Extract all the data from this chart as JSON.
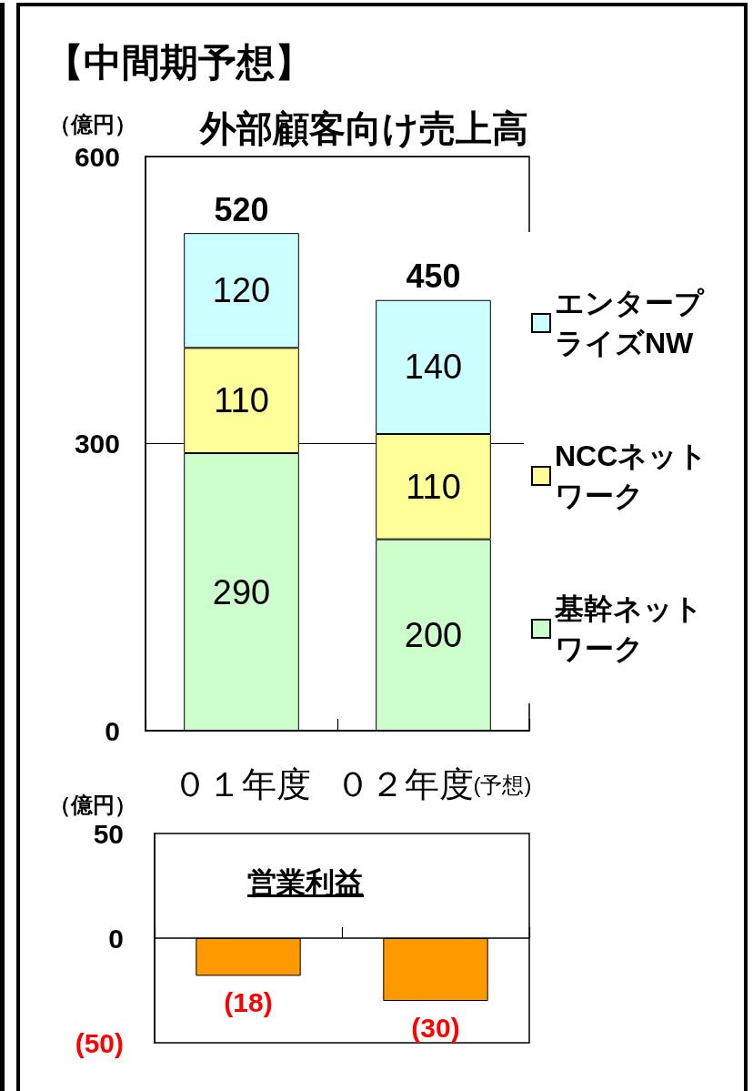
{
  "chart_data": [
    {
      "type": "bar",
      "title": "【中間期予想】",
      "subtitle": "外部顧客向け売上高",
      "ylabel": "（億円）",
      "categories": [
        "０１年度",
        "０２年度(予想)"
      ],
      "series": [
        {
          "name": "基幹ネットワーク",
          "color": "#ccffcc",
          "values": [
            290,
            200
          ]
        },
        {
          "name": "NCCネットワーク",
          "color": "#ffff99",
          "values": [
            110,
            110
          ]
        },
        {
          "name": "エンタープライズNW",
          "color": "#ccffff",
          "values": [
            120,
            140
          ]
        }
      ],
      "stacked": true,
      "ylim": [
        0,
        600
      ],
      "yticks": [
        0,
        300,
        600
      ],
      "grid": "y",
      "legend": "right",
      "data_labels": true,
      "totals": [
        "520",
        "450"
      ]
    },
    {
      "type": "bar",
      "title": "営業利益",
      "ylabel": "（億円）",
      "categories": [
        "０１年度",
        "０２年度(予想)"
      ],
      "values": [
        -18,
        -30
      ],
      "color": "#ff9900",
      "value_labels": [
        "(18)",
        "(30)"
      ],
      "ylim": [
        -50,
        50
      ],
      "yticks": [
        {
          "value": -50,
          "label": "(50)"
        },
        0,
        50
      ],
      "tick_labels": "y"
    }
  ]
}
